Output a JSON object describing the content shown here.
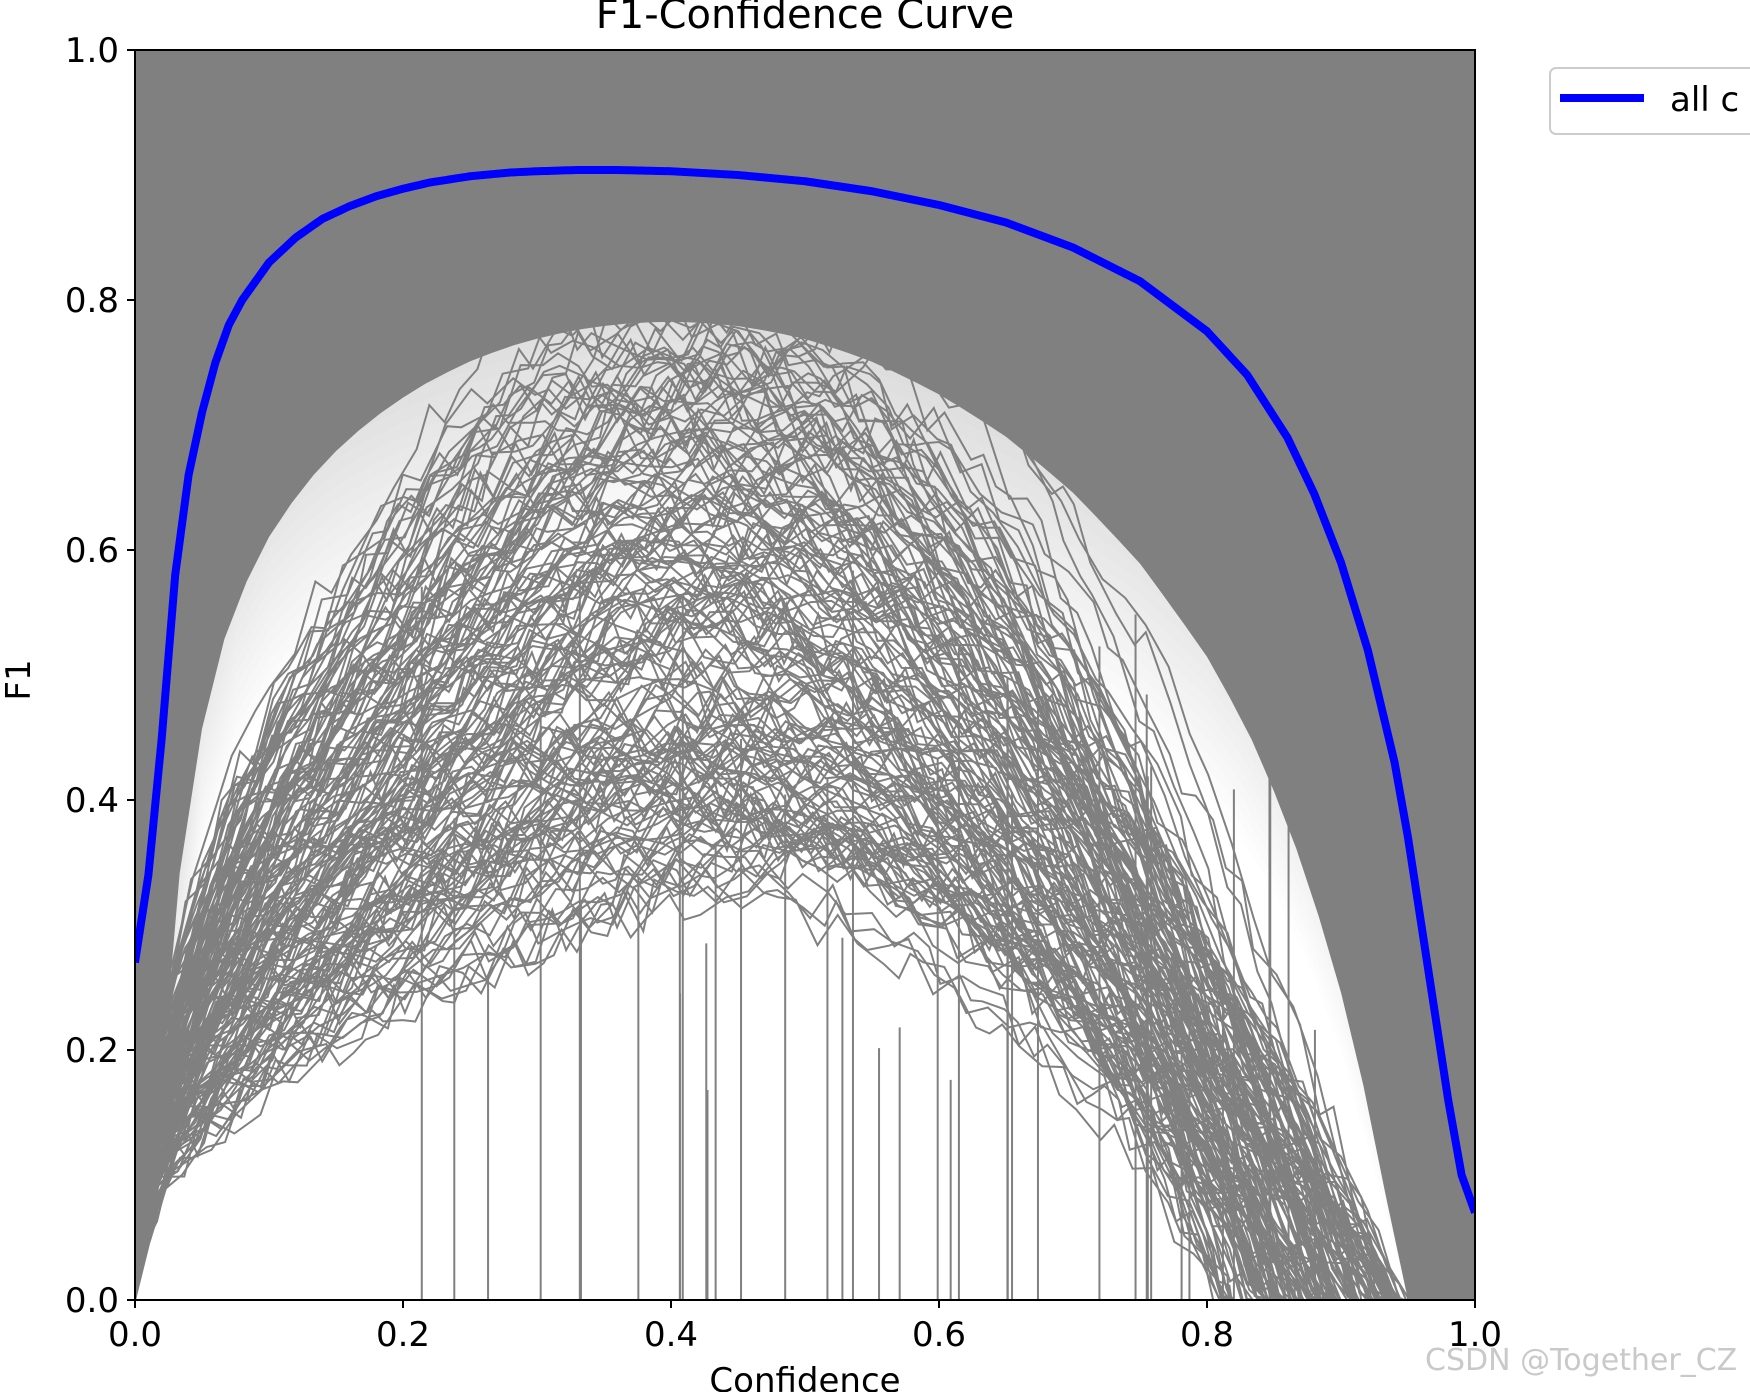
{
  "chart_data": {
    "type": "line",
    "title": "F1-Confidence Curve",
    "xlabel": "Confidence",
    "ylabel": "F1",
    "xlim": [
      0,
      1
    ],
    "ylim": [
      0,
      1
    ],
    "xticks": [
      "0.0",
      "0.2",
      "0.4",
      "0.6",
      "0.8",
      "1.0"
    ],
    "yticks": [
      "0.0",
      "0.2",
      "0.4",
      "0.6",
      "0.8",
      "1.0"
    ],
    "grid": false,
    "legend_position": "outside-top-right",
    "colors": {
      "mean": "#0000ff",
      "per_class": "#808080",
      "axes": "#000000",
      "watermark": "#c9c9c9"
    },
    "per_class_note_count": "many",
    "series": [
      {
        "name": "all c",
        "style": "mean",
        "x": [
          0.0,
          0.01,
          0.02,
          0.03,
          0.04,
          0.05,
          0.06,
          0.07,
          0.08,
          0.09,
          0.1,
          0.12,
          0.14,
          0.16,
          0.18,
          0.2,
          0.22,
          0.25,
          0.28,
          0.3,
          0.33,
          0.36,
          0.4,
          0.45,
          0.5,
          0.55,
          0.6,
          0.65,
          0.7,
          0.75,
          0.8,
          0.83,
          0.86,
          0.88,
          0.9,
          0.92,
          0.94,
          0.95,
          0.96,
          0.97,
          0.98,
          0.99,
          1.0
        ],
        "y": [
          0.27,
          0.34,
          0.45,
          0.58,
          0.66,
          0.71,
          0.75,
          0.78,
          0.8,
          0.815,
          0.83,
          0.85,
          0.865,
          0.875,
          0.883,
          0.889,
          0.894,
          0.899,
          0.902,
          0.903,
          0.904,
          0.904,
          0.903,
          0.9,
          0.895,
          0.887,
          0.876,
          0.862,
          0.842,
          0.815,
          0.775,
          0.74,
          0.69,
          0.645,
          0.59,
          0.52,
          0.43,
          0.37,
          0.3,
          0.23,
          0.16,
          0.1,
          0.07
        ]
      }
    ]
  },
  "watermark": "CSDN @Together_CZ"
}
